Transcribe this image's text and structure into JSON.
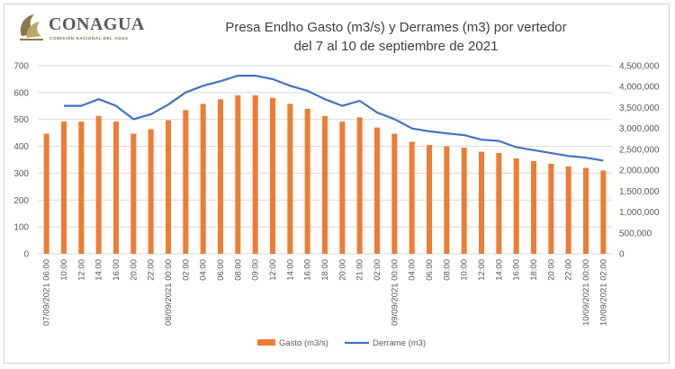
{
  "logo": {
    "name": "CONAGUA",
    "subtitle": "COMISIÓN NACIONAL DEL AGUA"
  },
  "chart_data": {
    "type": "bar+line",
    "title_line1": "Presa Endho  Gasto (m3/s) y Derrames (m3) por vertedor",
    "title_line2": "del 7 al 10 de septiembre de 2021",
    "categories": [
      "07/09/2021 06:00",
      "10:00",
      "12:00",
      "14:00",
      "16:00",
      "20:00",
      "22:00",
      "08/09/2021 00:00",
      "02:00",
      "04:00",
      "06:00",
      "08:00",
      "09:00",
      "12:00",
      "14:00",
      "16:00",
      "18:00",
      "20:00",
      "21:00",
      "02:00",
      "09/09/2021 00:00",
      "04:00",
      "06:00",
      "08:00",
      "10:00",
      "12:00",
      "14:00",
      "16:00",
      "18:00",
      "20:00",
      "22:00",
      "10/09/2021 00:00",
      "10/09/2021 02:00"
    ],
    "series": [
      {
        "name": "Gasto (m3/s)",
        "type": "bar",
        "axis": "left",
        "color": "#ED7D31",
        "values": [
          447,
          492,
          492,
          513,
          492,
          447,
          464,
          497,
          535,
          558,
          575,
          590,
          590,
          580,
          558,
          540,
          513,
          492,
          508,
          470,
          447,
          417,
          405,
          400,
          395,
          380,
          375,
          355,
          345,
          335,
          325,
          320,
          310
        ]
      },
      {
        "name": "Derrame (m3)",
        "type": "line",
        "axis": "right",
        "color": "#4472C4",
        "values": [
          null,
          3540000,
          3540000,
          3700000,
          3540000,
          3220000,
          3340000,
          3570000,
          3860000,
          4020000,
          4130000,
          4260000,
          4260000,
          4180000,
          4020000,
          3900000,
          3700000,
          3540000,
          3660000,
          3380000,
          3220000,
          3000000,
          2930000,
          2880000,
          2840000,
          2730000,
          2700000,
          2550000,
          2480000,
          2410000,
          2340000,
          2300000,
          2230000
        ]
      }
    ],
    "y_left": {
      "min": 0,
      "max": 700,
      "ticks": [
        "0",
        "100",
        "200",
        "300",
        "400",
        "500",
        "600",
        "700"
      ]
    },
    "y_right": {
      "min": 0,
      "max": 4500000,
      "ticks": [
        "0",
        "500,000",
        "1,000,000",
        "1,500,000",
        "2,000,000",
        "2,500,000",
        "3,000,000",
        "3,500,000",
        "4,000,000",
        "4,500,000"
      ]
    },
    "grid": true,
    "legend_position": "bottom"
  }
}
